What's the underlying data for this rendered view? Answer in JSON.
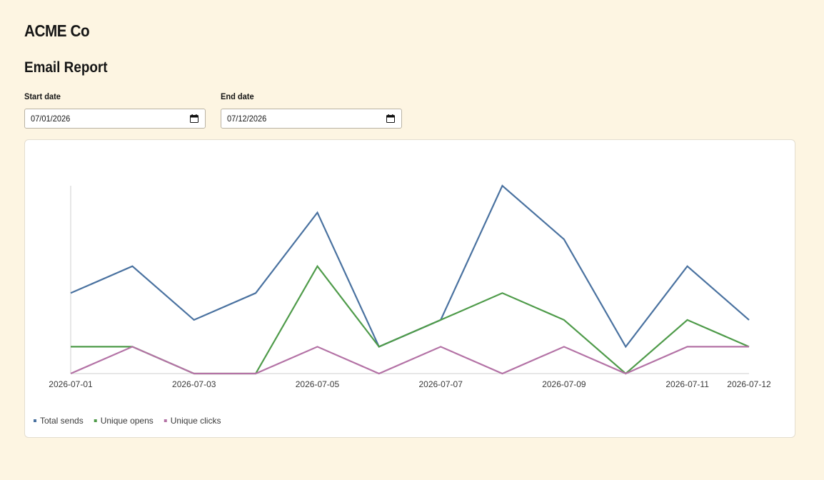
{
  "app": {
    "brand": "ACME Co"
  },
  "report": {
    "title": "Email Report"
  },
  "filters": {
    "start_label": "Start date",
    "start_value": "07/01/2026",
    "end_label": "End date",
    "end_value": "07/12/2026"
  },
  "chart_data": {
    "type": "line",
    "x": [
      "2026-07-01",
      "2026-07-02",
      "2026-07-03",
      "2026-07-04",
      "2026-07-05",
      "2026-07-06",
      "2026-07-07",
      "2026-07-08",
      "2026-07-09",
      "2026-07-10",
      "2026-07-11",
      "2026-07-12"
    ],
    "x_tick_labels": [
      "2026-07-01",
      "2026-07-03",
      "2026-07-05",
      "2026-07-07",
      "2026-07-09",
      "2026-07-11",
      "2026-07-12"
    ],
    "series": [
      {
        "name": "Total sends",
        "color": "#4a72a0",
        "values": [
          3,
          4,
          2,
          3,
          6,
          1,
          2,
          7,
          5,
          1,
          4,
          2
        ]
      },
      {
        "name": "Unique opens",
        "color": "#4f9b4a",
        "values": [
          1,
          1,
          0,
          0,
          4,
          1,
          2,
          3,
          2,
          0,
          2,
          1
        ]
      },
      {
        "name": "Unique clicks",
        "color": "#b473a6",
        "values": [
          0,
          1,
          0,
          0,
          1,
          0,
          1,
          0,
          1,
          0,
          1,
          1
        ]
      }
    ],
    "ylim": [
      0,
      7
    ],
    "grid": false,
    "legend": "bottom-left"
  }
}
